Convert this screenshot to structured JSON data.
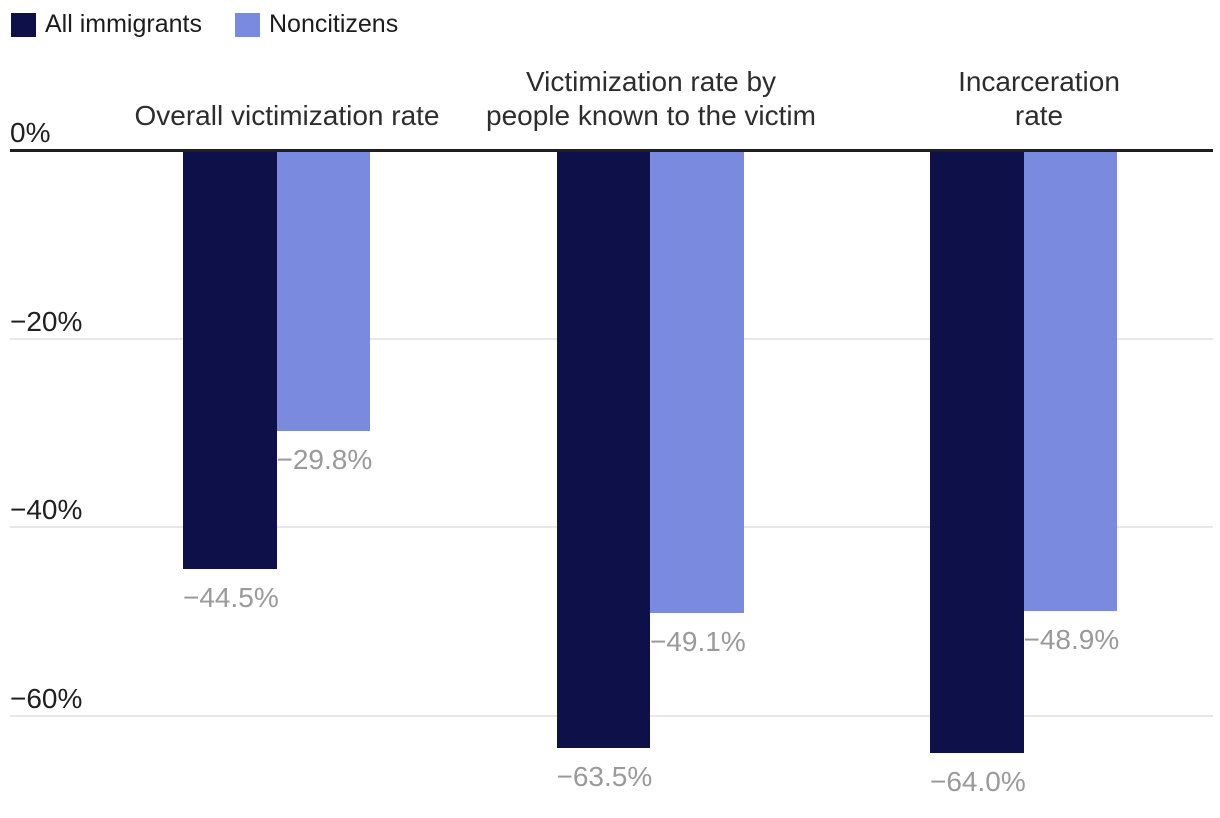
{
  "chart_data": {
    "type": "bar",
    "title": "",
    "categories": [
      "Overall victimization rate",
      "Victimization rate by\npeople known to the victim",
      "Incarceration rate"
    ],
    "series": [
      {
        "name": "All immigrants",
        "color": "#0e1049",
        "values": [
          -44.5,
          -63.5,
          -64.0
        ],
        "value_labels": [
          "−44.5%",
          "−63.5%",
          "−64.0%"
        ]
      },
      {
        "name": "Noncitizens",
        "color": "#7a8bdf",
        "values": [
          -29.8,
          -49.1,
          -48.9
        ],
        "value_labels": [
          "−29.8%",
          "−49.1%",
          "−48.9%"
        ]
      }
    ],
    "yticks": [
      {
        "value": 0,
        "label": "0%"
      },
      {
        "value": -20,
        "label": "−20%"
      },
      {
        "value": -40,
        "label": "−40%"
      },
      {
        "value": -60,
        "label": "−60%"
      }
    ],
    "ylim": [
      -70.9,
      0
    ],
    "xlabel": "",
    "ylabel": "",
    "grid": "horizontal",
    "legend_position": "top-left",
    "colors": {
      "zero_line": "#1f1f1f",
      "gridline": "#e8e8e8",
      "value_label": "#9a9a9a",
      "header_text": "#2d2d2d",
      "tick_text": "#1f1f1f",
      "legend_text": "#1c1c1c"
    }
  }
}
